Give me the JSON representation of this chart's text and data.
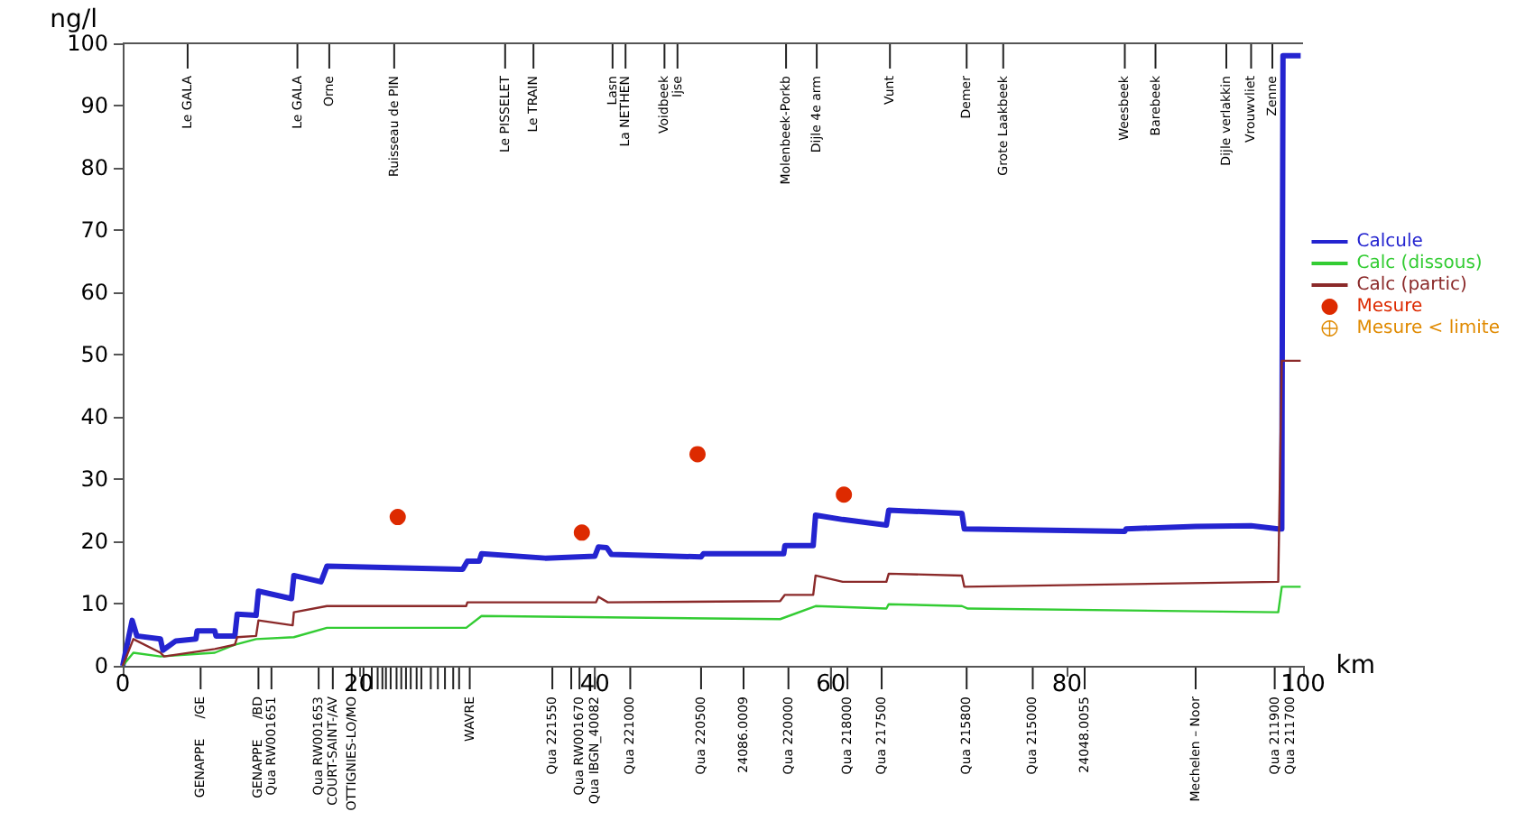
{
  "chart_data": {
    "type": "line",
    "xlabel": "km",
    "ylabel": "ng/l",
    "xlim": [
      0,
      100
    ],
    "ylim": [
      0,
      100
    ],
    "yticks": [
      0,
      10,
      20,
      30,
      40,
      50,
      60,
      70,
      80,
      90,
      100
    ],
    "xticks": [
      0,
      20,
      40,
      60,
      80,
      100
    ],
    "annotations": [
      "GENAPPE     /GE",
      "GENAPPE     /BD",
      "Qua RW001651",
      "Qua RW001653",
      "COURT-SAINT-/AV",
      "OTTIGNIES-LO/MO",
      "WAVRE",
      "Qua 221550",
      "Qua RW001670",
      "Qua IBGN_40082",
      "Qua 221000",
      "Qua 220500",
      "24086.0009",
      "Qua 220000",
      "Qua 218000",
      "Qua 217500",
      "Qua 215800",
      "Qua 215000",
      "24048.0055",
      "Mechelen – Noor",
      "Qua 211900",
      "Qua 211700",
      "Le GALA",
      "Le GALA",
      "Orne",
      "Ruisseau de PIN",
      "Le PISSELET",
      "Le TRAIN",
      "Lasn",
      "La NETHEN",
      "Voidbeek",
      "Ijse",
      "Molenbeek-Porkb",
      "Dijle 4e arm",
      "Vunt",
      "Demer",
      "Grote Laakbeek",
      "Weesbeek",
      "Barebeek",
      "Dijle verlakkin",
      "Vrouwvliet",
      "Zenne"
    ],
    "grid": false,
    "legend": "right",
    "marker": "none",
    "series": [
      {
        "name": "Calcule",
        "color": "#2424d0",
        "x": [
          0,
          0.8,
          1.2,
          3.2,
          3.4,
          4.5,
          6.2,
          6.3,
          7.8,
          7.9,
          9.5,
          9.7,
          11.3,
          11.5,
          14.3,
          14.5,
          16.8,
          17.3,
          28.8,
          29.2,
          30.2,
          30.4,
          35.8,
          40.0,
          40.3,
          41.0,
          41.4,
          49.0,
          49.2,
          56.0,
          56.1,
          58.5,
          58.7,
          61.0,
          64.7,
          64.9,
          71.1,
          71.3,
          84.9,
          85.0,
          90.9,
          95.6,
          97.9,
          98.2,
          98.3,
          99.8
        ],
        "values": [
          0,
          7.3,
          4.8,
          4.3,
          2.5,
          4.0,
          4.3,
          5.6,
          5.6,
          4.8,
          4.8,
          8.3,
          8.1,
          12.0,
          10.8,
          14.5,
          13.5,
          16.0,
          15.5,
          16.8,
          16.8,
          18.0,
          17.3,
          17.6,
          19.1,
          19.0,
          17.9,
          17.5,
          18.0,
          18.0,
          19.3,
          19.3,
          24.2,
          23.5,
          22.6,
          25.0,
          24.5,
          22.0,
          21.6,
          22.0,
          22.4,
          22.5,
          22.0,
          22.0,
          98,
          98
        ]
      },
      {
        "name": "Calc (dissous)",
        "color": "#33cc33",
        "x": [
          0,
          0.9,
          3.2,
          7.8,
          9.5,
          11.3,
          14.5,
          17.3,
          29.1,
          30.4,
          55.7,
          58.7,
          64.7,
          64.9,
          71.1,
          71.6,
          97.9,
          98.2,
          99.8
        ],
        "values": [
          0,
          2.1,
          1.5,
          2.1,
          3.4,
          4.3,
          4.6,
          6.1,
          6.1,
          8.0,
          7.5,
          9.6,
          9.2,
          9.9,
          9.6,
          9.2,
          8.6,
          12.7,
          12.7
        ]
      },
      {
        "name": "Calc (partic)",
        "color": "#8b2a2a",
        "x": [
          0,
          0.9,
          3.2,
          3.5,
          7.8,
          9.5,
          9.7,
          11.3,
          11.5,
          14.4,
          14.5,
          17.3,
          29.1,
          29.2,
          40.1,
          40.3,
          41.1,
          55.7,
          56.1,
          58.5,
          58.7,
          61.0,
          64.7,
          64.9,
          71.1,
          71.3,
          97.9,
          98.2,
          99.8
        ],
        "values": [
          0,
          4.3,
          2.1,
          1.5,
          2.7,
          3.4,
          4.6,
          4.8,
          7.3,
          6.5,
          8.6,
          9.6,
          9.6,
          10.2,
          10.2,
          11.1,
          10.2,
          10.4,
          11.4,
          11.4,
          14.5,
          13.5,
          13.5,
          14.8,
          14.5,
          12.7,
          13.5,
          49,
          49
        ]
      },
      {
        "name": "Mesure",
        "type": "scatter",
        "marker": "circle",
        "color": "#dd2a00",
        "x": [
          23.3,
          38.9,
          48.7,
          61.1
        ],
        "values": [
          23.9,
          21.4,
          34.0,
          27.5
        ]
      },
      {
        "name": "Mesure < limite",
        "type": "scatter",
        "marker": "cross",
        "color": "#e08a00"
      }
    ]
  }
}
